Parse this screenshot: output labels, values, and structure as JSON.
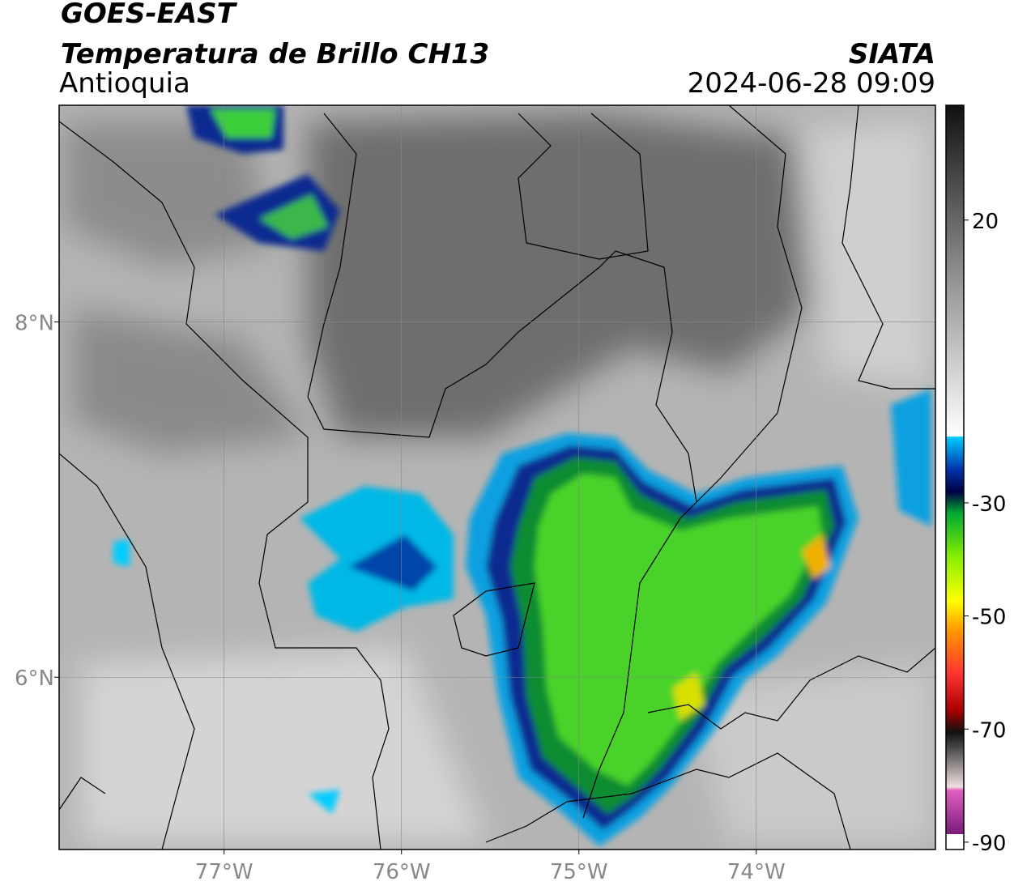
{
  "map": {
    "title": "GOES-EAST",
    "subtitle": "Temperatura de Brillo CH13",
    "region": "Antioquia",
    "source": "SIATA",
    "datetime": "2024-06-28 09:09",
    "xlim": [
      -77.93,
      -72.99
    ],
    "ylim": [
      5.03,
      9.22
    ],
    "xticks": [
      {
        "value": -77,
        "label": "77°W"
      },
      {
        "value": -76,
        "label": "76°W"
      },
      {
        "value": -75,
        "label": "75°W"
      },
      {
        "value": -74,
        "label": "74°W"
      }
    ],
    "yticks": [
      {
        "value": 6,
        "label": "6°N"
      },
      {
        "value": 8,
        "label": "8°N"
      }
    ],
    "grid": true,
    "colorbar": {
      "lim": [
        -91.3,
        40.3
      ],
      "ticks": [
        20,
        -30,
        -50,
        -70,
        -90
      ]
    }
  }
}
